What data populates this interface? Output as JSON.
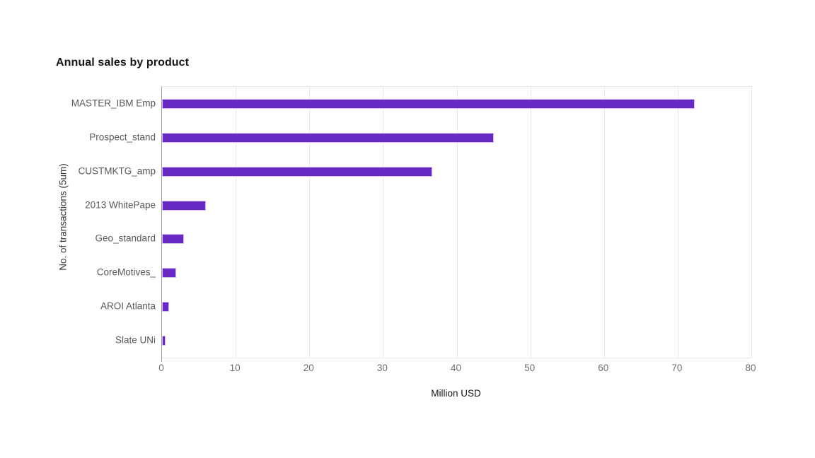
{
  "chart_data": {
    "type": "bar",
    "orientation": "horizontal",
    "title": "Annual sales by product",
    "categories": [
      "MASTER_IBM Emp",
      "Prospect_stand",
      "CUSTMKTG_amp",
      "2013 WhitePape",
      "Geo_standard",
      "CoreMotives_",
      "AROI Atlanta",
      "Slate UNi"
    ],
    "values": [
      72.3,
      45,
      36.7,
      6,
      3,
      1.9,
      1,
      0.5
    ],
    "xlabel": "Million USD",
    "ylabel": "No. of transactions (5um)",
    "xlim": [
      0,
      80
    ],
    "xticks": [
      0,
      10,
      20,
      30,
      40,
      50,
      60,
      70,
      80
    ],
    "grid": true,
    "legend": false,
    "colors": {
      "bar": "#6929c4",
      "bar_outline": "#d6bdf2",
      "title_text": "#161616",
      "axis_title_text": "#393939",
      "label_text": "#595959",
      "tick_text": "#6f6f6f",
      "axis_line": "#9a9a9a",
      "gridline": "#e7e7e7"
    }
  }
}
